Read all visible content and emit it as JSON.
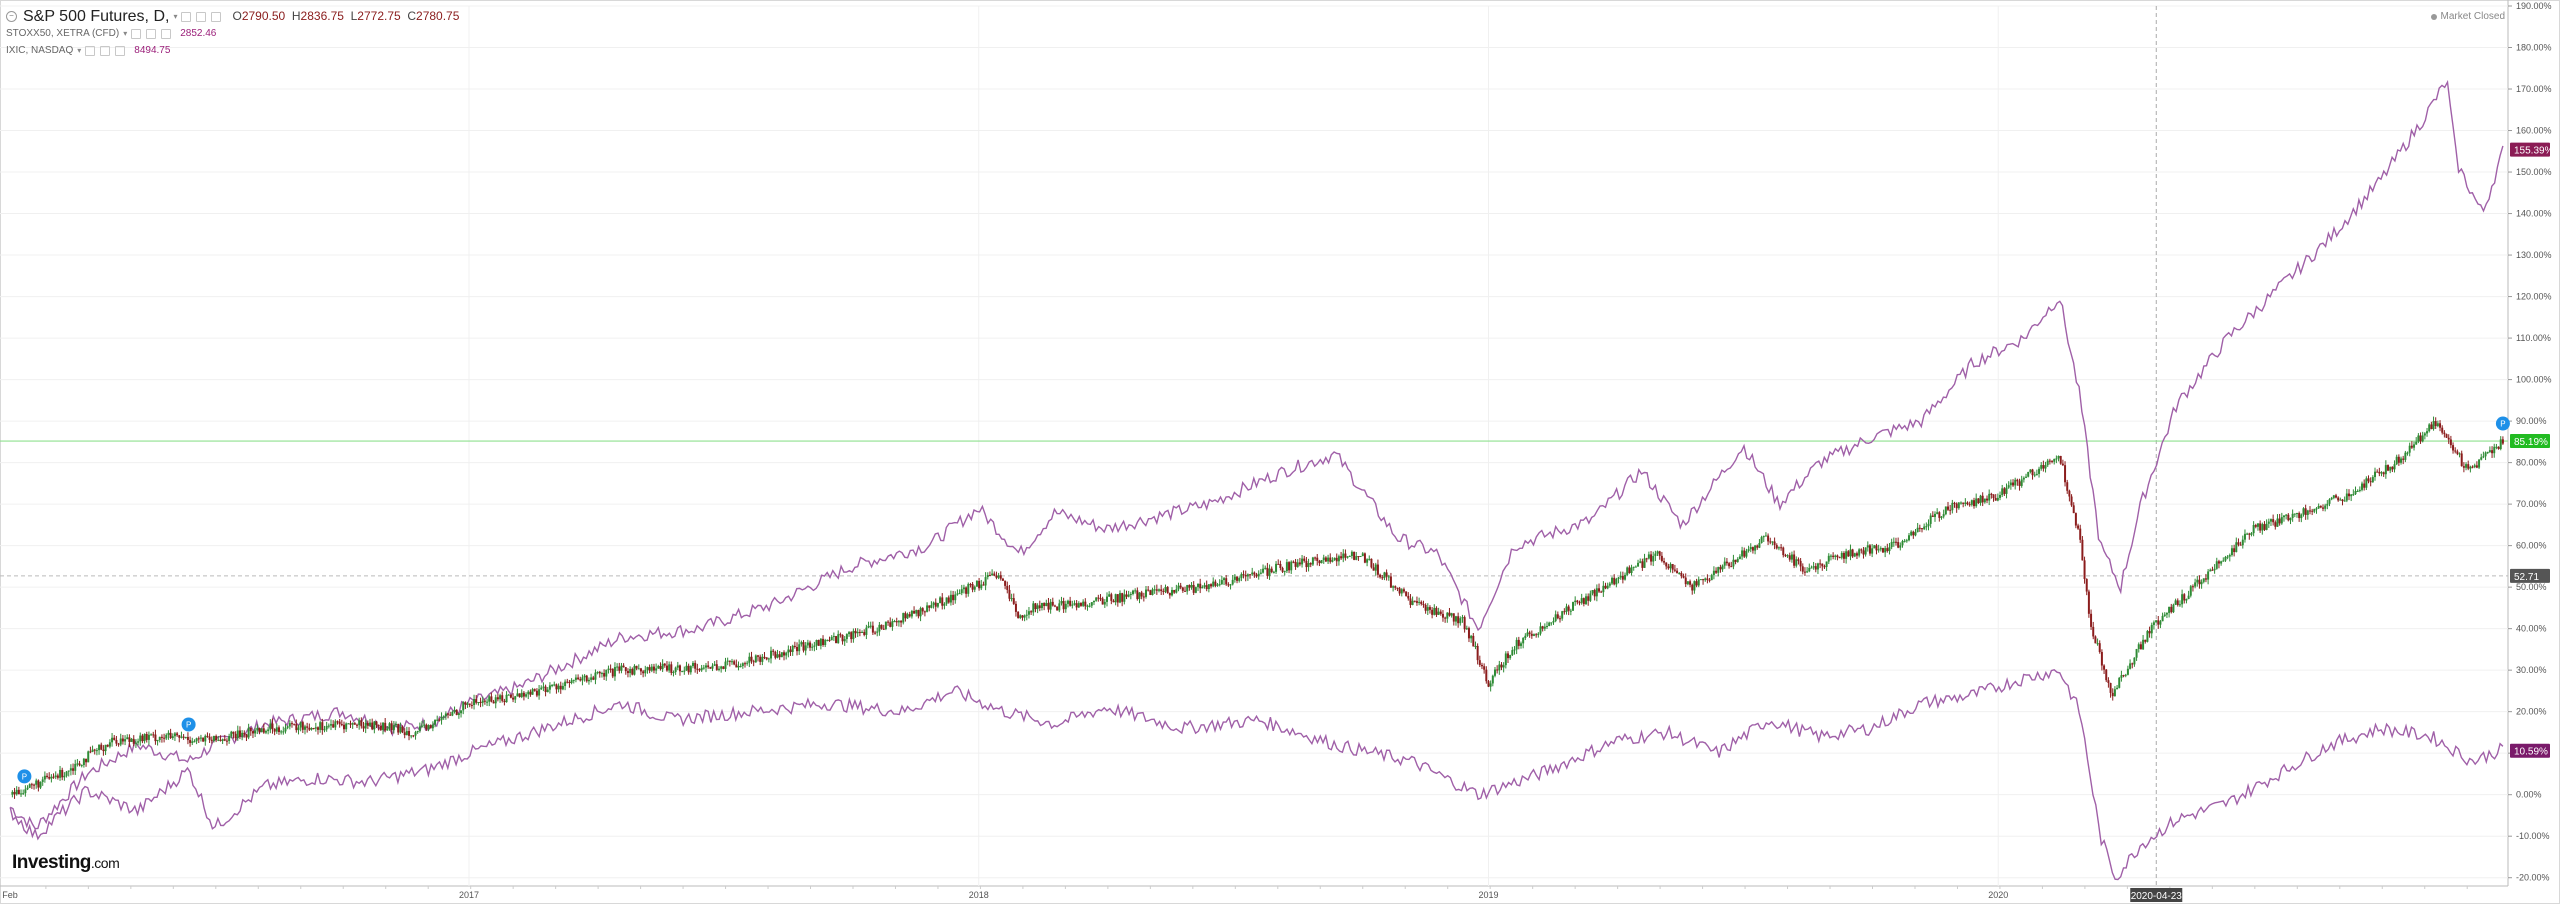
{
  "legend": {
    "main": {
      "name": "S&P 500 Futures, D,",
      "open_label": "O",
      "open": "2790.50",
      "high_label": "H",
      "high": "2836.75",
      "low_label": "L",
      "low": "2772.75",
      "close_label": "C",
      "close": "2780.75"
    },
    "series2": {
      "name": "STOXX50, XETRA (CFD)",
      "value": "2852.46"
    },
    "series3": {
      "name": "IXIC, NASDAQ",
      "value": "8494.75"
    }
  },
  "status": {
    "market_closed": "Market Closed"
  },
  "logo": {
    "text": "Investing",
    "suffix": ".com"
  },
  "colors": {
    "up_candle": "#2e8b35",
    "down_candle": "#8b1c1c",
    "compare_line": "#a060a8",
    "nasdaq_tag": "#8b1c55",
    "sp_tag": "#22bb22",
    "stoxx_tag": "#7a1a6a",
    "price_tag": "#555555",
    "hline": "#8fe08f"
  },
  "chart_data": {
    "type": "line",
    "title": "S&P 500 Futures, D,",
    "y_unit": "%",
    "ylim": [
      -22,
      190
    ],
    "y_ticks": [
      "-20.00%",
      "-10.00%",
      "0.00%",
      "10.00%",
      "20.00%",
      "30.00%",
      "40.00%",
      "50.00%",
      "60.00%",
      "70.00%",
      "80.00%",
      "90.00%",
      "100.00%",
      "110.00%",
      "120.00%",
      "130.00%",
      "140.00%",
      "150.00%",
      "160.00%",
      "170.00%",
      "180.00%",
      "190.00%"
    ],
    "x_ticks": [
      "Feb",
      "2017",
      "2018",
      "2019",
      "2020"
    ],
    "crosshair_date": "2020-04-23",
    "crosshair_value": "52.71",
    "horizontal_line": 85.19,
    "grid": true,
    "series": [
      {
        "name": "S&P 500 Futures",
        "style": "candlestick",
        "last_label": "85.19%",
        "points": [
          [
            2016.1,
            0
          ],
          [
            2016.2,
            5
          ],
          [
            2016.3,
            13
          ],
          [
            2016.4,
            14
          ],
          [
            2016.5,
            13
          ],
          [
            2016.6,
            16
          ],
          [
            2016.8,
            17
          ],
          [
            2016.9,
            15
          ],
          [
            2017.0,
            22
          ],
          [
            2017.1,
            24
          ],
          [
            2017.2,
            27
          ],
          [
            2017.3,
            30
          ],
          [
            2017.5,
            31
          ],
          [
            2017.6,
            34
          ],
          [
            2017.8,
            40
          ],
          [
            2017.9,
            45
          ],
          [
            2018.04,
            53
          ],
          [
            2018.08,
            42
          ],
          [
            2018.1,
            45
          ],
          [
            2018.2,
            46
          ],
          [
            2018.3,
            48
          ],
          [
            2018.45,
            50
          ],
          [
            2018.6,
            55
          ],
          [
            2018.75,
            58
          ],
          [
            2018.85,
            46
          ],
          [
            2018.95,
            42
          ],
          [
            2019.0,
            27
          ],
          [
            2019.05,
            36
          ],
          [
            2019.2,
            48
          ],
          [
            2019.33,
            58
          ],
          [
            2019.4,
            50
          ],
          [
            2019.55,
            62
          ],
          [
            2019.62,
            54
          ],
          [
            2019.7,
            58
          ],
          [
            2019.8,
            60
          ],
          [
            2019.9,
            69
          ],
          [
            2020.0,
            72
          ],
          [
            2020.12,
            82
          ],
          [
            2020.16,
            62
          ],
          [
            2020.18,
            42
          ],
          [
            2020.22,
            24
          ],
          [
            2020.26,
            32
          ],
          [
            2020.3,
            40
          ],
          [
            2020.4,
            52
          ],
          [
            2020.5,
            64
          ],
          [
            2020.6,
            68
          ],
          [
            2020.68,
            72
          ],
          [
            2020.78,
            80
          ],
          [
            2020.86,
            90
          ],
          [
            2020.92,
            78
          ],
          [
            2020.99,
            85
          ]
        ]
      },
      {
        "name": "IXIC, NASDAQ",
        "style": "line",
        "last_label": "155.39%",
        "points": [
          [
            2016.1,
            -3
          ],
          [
            2016.15,
            -8
          ],
          [
            2016.25,
            5
          ],
          [
            2016.35,
            12
          ],
          [
            2016.45,
            8
          ],
          [
            2016.5,
            12
          ],
          [
            2016.6,
            17
          ],
          [
            2016.75,
            20
          ],
          [
            2016.85,
            16
          ],
          [
            2016.92,
            17
          ],
          [
            2017.0,
            22
          ],
          [
            2017.1,
            26
          ],
          [
            2017.2,
            32
          ],
          [
            2017.3,
            38
          ],
          [
            2017.45,
            40
          ],
          [
            2017.6,
            46
          ],
          [
            2017.75,
            55
          ],
          [
            2017.9,
            60
          ],
          [
            2018.0,
            69
          ],
          [
            2018.08,
            58
          ],
          [
            2018.15,
            68
          ],
          [
            2018.25,
            64
          ],
          [
            2018.35,
            67
          ],
          [
            2018.45,
            70
          ],
          [
            2018.6,
            78
          ],
          [
            2018.7,
            82
          ],
          [
            2018.76,
            72
          ],
          [
            2018.82,
            62
          ],
          [
            2018.9,
            58
          ],
          [
            2018.98,
            40
          ],
          [
            2019.05,
            60
          ],
          [
            2019.2,
            66
          ],
          [
            2019.3,
            78
          ],
          [
            2019.38,
            65
          ],
          [
            2019.5,
            84
          ],
          [
            2019.57,
            70
          ],
          [
            2019.65,
            80
          ],
          [
            2019.75,
            86
          ],
          [
            2019.85,
            90
          ],
          [
            2019.95,
            104
          ],
          [
            2020.05,
            110
          ],
          [
            2020.12,
            120
          ],
          [
            2020.16,
            96
          ],
          [
            2020.2,
            60
          ],
          [
            2020.24,
            50
          ],
          [
            2020.28,
            70
          ],
          [
            2020.35,
            94
          ],
          [
            2020.45,
            110
          ],
          [
            2020.55,
            122
          ],
          [
            2020.65,
            134
          ],
          [
            2020.75,
            148
          ],
          [
            2020.83,
            162
          ],
          [
            2020.88,
            172
          ],
          [
            2020.9,
            152
          ],
          [
            2020.95,
            140
          ],
          [
            2020.99,
            155
          ]
        ]
      },
      {
        "name": "STOXX50, XETRA (CFD)",
        "style": "line",
        "last_label": "10.59%",
        "points": [
          [
            2016.1,
            -4
          ],
          [
            2016.15,
            -10
          ],
          [
            2016.25,
            1
          ],
          [
            2016.35,
            -4
          ],
          [
            2016.45,
            6
          ],
          [
            2016.5,
            -8
          ],
          [
            2016.6,
            2
          ],
          [
            2016.7,
            4
          ],
          [
            2016.8,
            3
          ],
          [
            2016.92,
            6
          ],
          [
            2017.0,
            10
          ],
          [
            2017.1,
            14
          ],
          [
            2017.2,
            18
          ],
          [
            2017.3,
            22
          ],
          [
            2017.4,
            18
          ],
          [
            2017.55,
            20
          ],
          [
            2017.7,
            22
          ],
          [
            2017.85,
            20
          ],
          [
            2017.95,
            25
          ],
          [
            2018.05,
            20
          ],
          [
            2018.15,
            17
          ],
          [
            2018.25,
            21
          ],
          [
            2018.4,
            16
          ],
          [
            2018.55,
            18
          ],
          [
            2018.7,
            12
          ],
          [
            2018.85,
            8
          ],
          [
            2018.98,
            0
          ],
          [
            2019.1,
            5
          ],
          [
            2019.25,
            13
          ],
          [
            2019.35,
            15
          ],
          [
            2019.45,
            10
          ],
          [
            2019.55,
            18
          ],
          [
            2019.65,
            14
          ],
          [
            2019.75,
            16
          ],
          [
            2019.85,
            22
          ],
          [
            2019.95,
            24
          ],
          [
            2020.05,
            28
          ],
          [
            2020.12,
            30
          ],
          [
            2020.16,
            20
          ],
          [
            2020.2,
            -10
          ],
          [
            2020.23,
            -20
          ],
          [
            2020.28,
            -12
          ],
          [
            2020.35,
            -6
          ],
          [
            2020.45,
            -2
          ],
          [
            2020.55,
            5
          ],
          [
            2020.65,
            12
          ],
          [
            2020.75,
            16
          ],
          [
            2020.85,
            14
          ],
          [
            2020.93,
            8
          ],
          [
            2020.99,
            11
          ]
        ]
      }
    ]
  }
}
